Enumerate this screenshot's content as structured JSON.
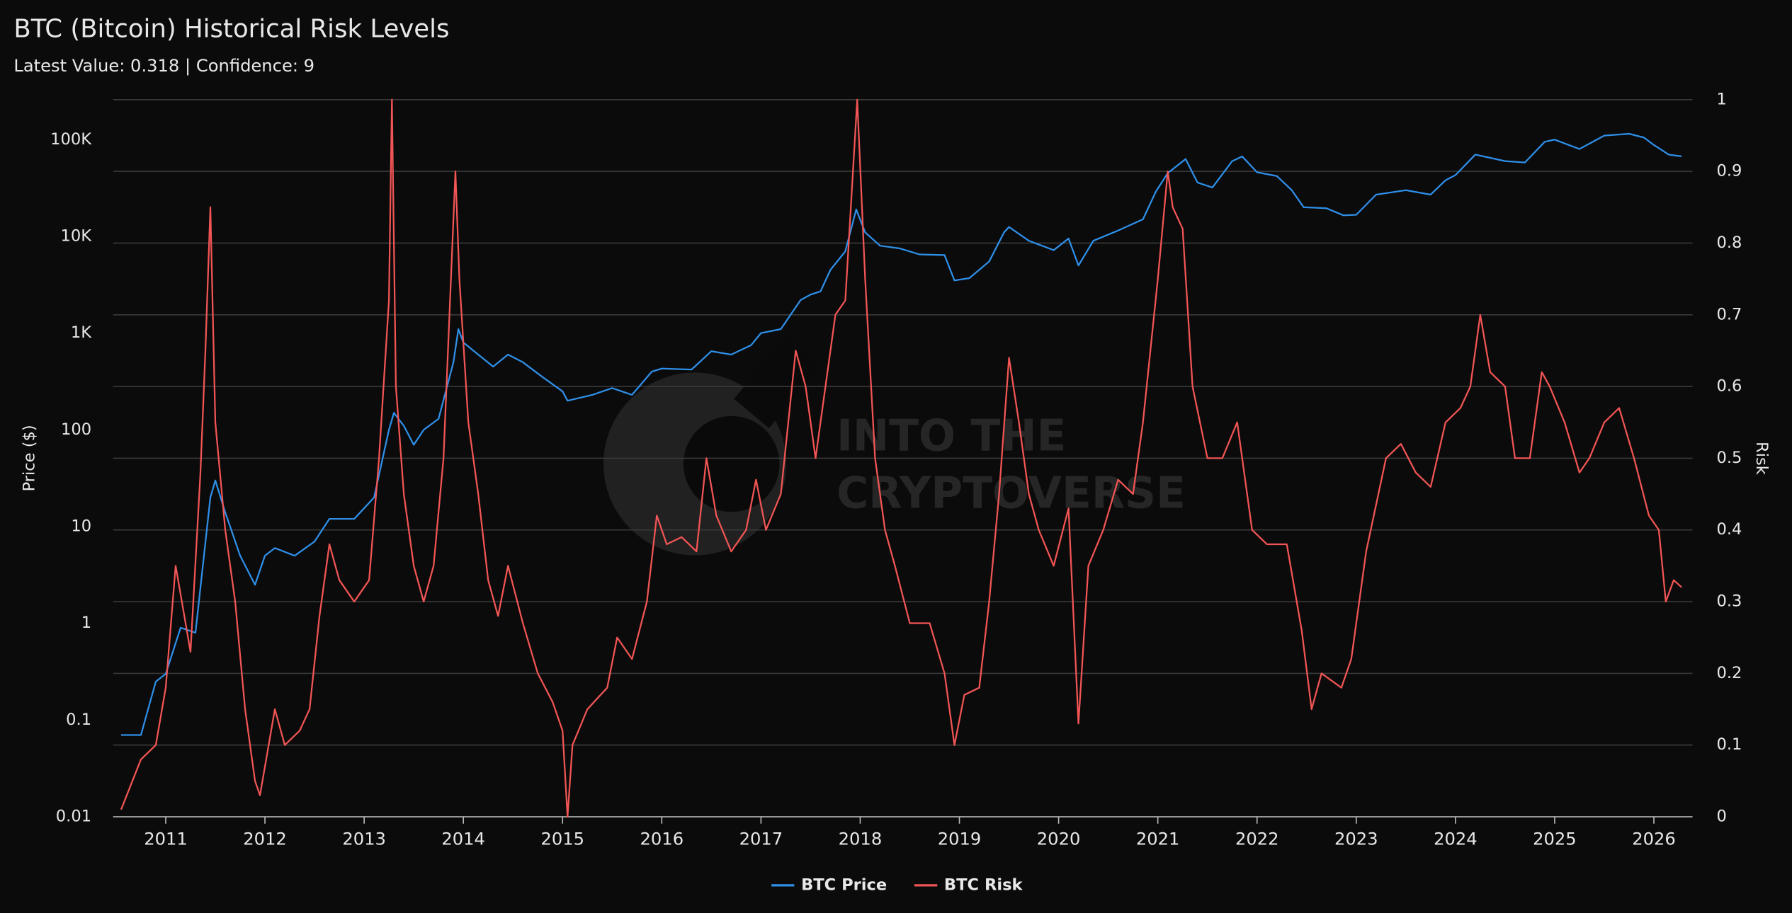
{
  "chart_data": {
    "type": "line",
    "title": "BTC (Bitcoin) Historical Risk Levels",
    "subtitle": "Latest Value: 0.318 | Confidence: 9",
    "watermark": [
      "INTO THE",
      "CRYPTOVERSE"
    ],
    "y_label": "Price ($)",
    "y2_label": "Risk",
    "ylog": true,
    "xlim": [
      2010.47,
      2026.39
    ],
    "xticks": [
      2011,
      2012,
      2013,
      2014,
      2015,
      2016,
      2017,
      2018,
      2019,
      2020,
      2021,
      2022,
      2023,
      2024,
      2025,
      2026
    ],
    "ylim": [
      0.01,
      259000
    ],
    "yticks": [
      0.01,
      0.1,
      1,
      10,
      100,
      {
        "value": 1000,
        "label": "1K"
      },
      {
        "value": 10000,
        "label": "10K"
      },
      {
        "value": 100000,
        "label": "100K"
      }
    ],
    "y2lim": [
      0,
      1
    ],
    "y2ticks": [
      0,
      0.1,
      0.2,
      0.3,
      0.4,
      0.5,
      0.6,
      0.7,
      0.8,
      0.9,
      1
    ],
    "grid": true,
    "legend": "bottom",
    "series": [
      {
        "name": "BTC Price",
        "color": "#2f8fe8",
        "x": [
          2010.55,
          2010.75,
          2010.9,
          2011.0,
          2011.15,
          2011.3,
          2011.45,
          2011.5,
          2011.6,
          2011.75,
          2011.9,
          2012.0,
          2012.1,
          2012.3,
          2012.5,
          2012.65,
          2012.9,
          2013.1,
          2013.25,
          2013.3,
          2013.4,
          2013.5,
          2013.6,
          2013.75,
          2013.9,
          2013.95,
          2014.0,
          2014.15,
          2014.3,
          2014.45,
          2014.6,
          2014.8,
          2015.0,
          2015.05,
          2015.3,
          2015.5,
          2015.7,
          2015.9,
          2016.0,
          2016.3,
          2016.5,
          2016.7,
          2016.9,
          2017.0,
          2017.2,
          2017.4,
          2017.5,
          2017.6,
          2017.7,
          2017.85,
          2017.96,
          2018.05,
          2018.2,
          2018.4,
          2018.6,
          2018.85,
          2018.95,
          2019.1,
          2019.3,
          2019.45,
          2019.5,
          2019.7,
          2019.95,
          2020.1,
          2020.2,
          2020.35,
          2020.6,
          2020.85,
          2020.98,
          2021.1,
          2021.28,
          2021.4,
          2021.55,
          2021.75,
          2021.85,
          2022.0,
          2022.2,
          2022.35,
          2022.47,
          2022.7,
          2022.87,
          2023.0,
          2023.2,
          2023.5,
          2023.75,
          2023.9,
          2024.0,
          2024.2,
          2024.5,
          2024.7,
          2024.9,
          2025.0,
          2025.25,
          2025.5,
          2025.75,
          2025.9,
          2026.0,
          2026.15,
          2026.28
        ],
        "values": [
          0.07,
          0.07,
          0.25,
          0.3,
          0.9,
          0.8,
          20,
          30,
          14,
          5,
          2.5,
          5,
          6,
          5,
          7,
          12,
          12,
          20,
          100,
          150,
          110,
          70,
          100,
          130,
          500,
          1100,
          800,
          600,
          450,
          600,
          500,
          350,
          250,
          200,
          230,
          270,
          230,
          400,
          430,
          420,
          650,
          600,
          750,
          1000,
          1100,
          2200,
          2500,
          2700,
          4500,
          7000,
          19000,
          11000,
          8000,
          7500,
          6500,
          6400,
          3500,
          3700,
          5500,
          11000,
          12500,
          9000,
          7200,
          9500,
          5000,
          9000,
          11500,
          15000,
          29000,
          45000,
          63000,
          36000,
          32000,
          60000,
          67000,
          46000,
          42000,
          30000,
          20000,
          19500,
          16500,
          16700,
          27000,
          30000,
          27000,
          38000,
          43000,
          70000,
          60000,
          58000,
          95000,
          100000,
          80000,
          110000,
          115000,
          105000,
          88000,
          70000,
          67000
        ]
      },
      {
        "name": "BTC Risk",
        "color": "#f25555",
        "axis": "y2",
        "x": [
          2010.55,
          2010.75,
          2010.9,
          2011.0,
          2011.1,
          2011.25,
          2011.35,
          2011.4,
          2011.45,
          2011.5,
          2011.6,
          2011.7,
          2011.8,
          2011.9,
          2011.95,
          2012.1,
          2012.2,
          2012.35,
          2012.45,
          2012.55,
          2012.65,
          2012.75,
          2012.9,
          2013.05,
          2013.15,
          2013.25,
          2013.28,
          2013.32,
          2013.4,
          2013.5,
          2013.6,
          2013.7,
          2013.8,
          2013.92,
          2013.96,
          2014.05,
          2014.15,
          2014.25,
          2014.35,
          2014.45,
          2014.6,
          2014.75,
          2014.9,
          2015.0,
          2015.05,
          2015.1,
          2015.25,
          2015.45,
          2015.55,
          2015.7,
          2015.85,
          2015.95,
          2016.05,
          2016.2,
          2016.35,
          2016.45,
          2016.55,
          2016.7,
          2016.85,
          2016.95,
          2017.05,
          2017.2,
          2017.35,
          2017.45,
          2017.55,
          2017.65,
          2017.75,
          2017.85,
          2017.97,
          2018.05,
          2018.15,
          2018.25,
          2018.35,
          2018.5,
          2018.7,
          2018.85,
          2018.95,
          2019.05,
          2019.2,
          2019.3,
          2019.4,
          2019.5,
          2019.6,
          2019.7,
          2019.8,
          2019.95,
          2020.1,
          2020.2,
          2020.3,
          2020.45,
          2020.6,
          2020.75,
          2020.85,
          2021.0,
          2021.1,
          2021.15,
          2021.25,
          2021.35,
          2021.5,
          2021.65,
          2021.8,
          2021.95,
          2022.1,
          2022.3,
          2022.45,
          2022.55,
          2022.65,
          2022.85,
          2022.95,
          2023.1,
          2023.3,
          2023.45,
          2023.6,
          2023.75,
          2023.9,
          2024.05,
          2024.15,
          2024.25,
          2024.35,
          2024.5,
          2024.6,
          2024.75,
          2024.87,
          2024.95,
          2025.1,
          2025.25,
          2025.35,
          2025.5,
          2025.65,
          2025.8,
          2025.95,
          2026.05,
          2026.12,
          2026.2,
          2026.28
        ],
        "values": [
          0.01,
          0.08,
          0.1,
          0.18,
          0.35,
          0.23,
          0.48,
          0.65,
          0.85,
          0.55,
          0.4,
          0.3,
          0.15,
          0.05,
          0.03,
          0.15,
          0.1,
          0.12,
          0.15,
          0.28,
          0.38,
          0.33,
          0.3,
          0.33,
          0.5,
          0.72,
          1.0,
          0.6,
          0.45,
          0.35,
          0.3,
          0.35,
          0.5,
          0.9,
          0.75,
          0.55,
          0.45,
          0.33,
          0.28,
          0.35,
          0.27,
          0.2,
          0.16,
          0.12,
          0.0,
          0.1,
          0.15,
          0.18,
          0.25,
          0.22,
          0.3,
          0.42,
          0.38,
          0.39,
          0.37,
          0.5,
          0.42,
          0.37,
          0.4,
          0.47,
          0.4,
          0.45,
          0.65,
          0.6,
          0.5,
          0.6,
          0.7,
          0.72,
          1.0,
          0.75,
          0.5,
          0.4,
          0.35,
          0.27,
          0.27,
          0.2,
          0.1,
          0.17,
          0.18,
          0.3,
          0.45,
          0.64,
          0.55,
          0.45,
          0.4,
          0.35,
          0.43,
          0.13,
          0.35,
          0.4,
          0.47,
          0.45,
          0.55,
          0.75,
          0.9,
          0.85,
          0.82,
          0.6,
          0.5,
          0.5,
          0.55,
          0.4,
          0.38,
          0.38,
          0.26,
          0.15,
          0.2,
          0.18,
          0.22,
          0.37,
          0.5,
          0.52,
          0.48,
          0.46,
          0.55,
          0.57,
          0.6,
          0.7,
          0.62,
          0.6,
          0.5,
          0.5,
          0.62,
          0.6,
          0.55,
          0.48,
          0.5,
          0.55,
          0.57,
          0.5,
          0.42,
          0.4,
          0.3,
          0.33,
          0.32
        ]
      }
    ]
  }
}
